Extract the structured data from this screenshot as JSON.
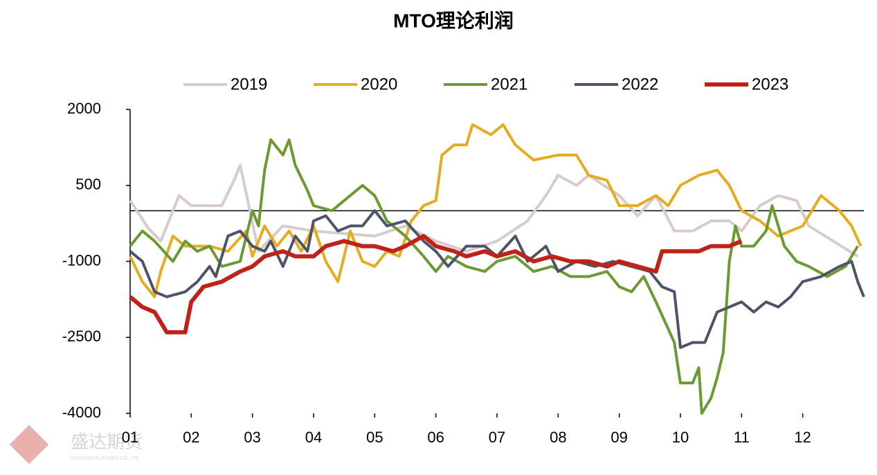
{
  "chart_data": {
    "type": "line",
    "title": "MTO理论利润",
    "xlim": [
      1,
      13
    ],
    "xticks": [
      {
        "value": 1,
        "label": "01"
      },
      {
        "value": 2,
        "label": "02"
      },
      {
        "value": 3,
        "label": "03"
      },
      {
        "value": 4,
        "label": "04"
      },
      {
        "value": 5,
        "label": "05"
      },
      {
        "value": 6,
        "label": "06"
      },
      {
        "value": 7,
        "label": "07"
      },
      {
        "value": 8,
        "label": "08"
      },
      {
        "value": 9,
        "label": "09"
      },
      {
        "value": 10,
        "label": "10"
      },
      {
        "value": 11,
        "label": "11"
      },
      {
        "value": 12,
        "label": "12"
      }
    ],
    "ylim": [
      -4000,
      2000
    ],
    "yticks": [
      2000,
      500,
      -1000,
      -2500,
      -4000
    ],
    "legend": "top",
    "series": [
      {
        "name": "2019",
        "color": "#d9cbcb",
        "width": 4,
        "x": [
          1,
          1.3,
          1.5,
          1.8,
          2.0,
          2.5,
          2.7,
          2.8,
          3.1,
          3.5,
          4.0,
          5.0,
          5.5,
          6.0,
          6.5,
          7.0,
          7.5,
          7.8,
          8.0,
          8.3,
          8.5,
          9.0,
          9.3,
          9.6,
          9.9,
          10.2,
          10.5,
          10.8,
          11.0,
          11.3,
          11.6,
          11.9,
          12.1,
          12.5,
          12.9
        ],
        "values": [
          200,
          -350,
          -600,
          300,
          100,
          100,
          600,
          900,
          -800,
          -300,
          -400,
          -500,
          -300,
          -600,
          -800,
          -600,
          -200,
          300,
          700,
          500,
          700,
          300,
          -100,
          300,
          -400,
          -400,
          -200,
          -200,
          -400,
          100,
          300,
          200,
          -300,
          -600,
          -900
        ]
      },
      {
        "name": "2020",
        "color": "#e5ac20",
        "width": 4,
        "x": [
          1,
          1.2,
          1.4,
          1.5,
          1.7,
          1.9,
          2.3,
          2.6,
          2.9,
          3.0,
          3.2,
          3.4,
          3.6,
          3.8,
          4.0,
          4.2,
          4.4,
          4.6,
          4.8,
          5.0,
          5.2,
          5.4,
          5.6,
          5.8,
          6.0,
          6.1,
          6.3,
          6.5,
          6.6,
          6.9,
          7.1,
          7.3,
          7.6,
          8.0,
          8.3,
          8.5,
          8.8,
          9.0,
          9.3,
          9.6,
          9.8,
          10.0,
          10.3,
          10.6,
          10.8,
          11.0,
          11.3,
          11.6,
          12.0,
          12.3,
          12.6,
          12.8,
          12.95
        ],
        "values": [
          -900,
          -1400,
          -1700,
          -1200,
          -500,
          -700,
          -700,
          -800,
          -400,
          -900,
          -300,
          -700,
          -400,
          -800,
          -300,
          -1000,
          -1400,
          -400,
          -1000,
          -1100,
          -800,
          -900,
          -200,
          100,
          200,
          1100,
          1300,
          1300,
          1700,
          1500,
          1700,
          1300,
          1000,
          1100,
          1100,
          700,
          600,
          100,
          100,
          300,
          100,
          500,
          700,
          800,
          500,
          0,
          -200,
          -500,
          -300,
          300,
          0,
          -300,
          -700
        ]
      },
      {
        "name": "2021",
        "color": "#6a9a30",
        "width": 4,
        "x": [
          1,
          1.2,
          1.4,
          1.7,
          1.9,
          2.1,
          2.3,
          2.5,
          2.8,
          3.0,
          3.1,
          3.2,
          3.3,
          3.5,
          3.6,
          3.7,
          3.9,
          4.0,
          4.3,
          4.5,
          4.8,
          5.0,
          5.2,
          5.5,
          5.8,
          6.0,
          6.2,
          6.5,
          6.8,
          7.0,
          7.3,
          7.6,
          7.9,
          8.2,
          8.5,
          8.8,
          9.0,
          9.2,
          9.4,
          9.6,
          9.9,
          10.0,
          10.2,
          10.3,
          10.35,
          10.5,
          10.6,
          10.7,
          10.8,
          10.9,
          11.0,
          11.2,
          11.4,
          11.5,
          11.7,
          11.9,
          12.1,
          12.4,
          12.7,
          12.9
        ],
        "values": [
          -700,
          -400,
          -600,
          -1000,
          -600,
          -800,
          -700,
          -1100,
          -1000,
          0,
          -300,
          800,
          1400,
          1100,
          1400,
          900,
          400,
          100,
          0,
          200,
          500,
          300,
          -200,
          -500,
          -900,
          -1200,
          -900,
          -1100,
          -1200,
          -1000,
          -900,
          -1200,
          -1100,
          -1300,
          -1300,
          -1200,
          -1500,
          -1600,
          -1300,
          -1800,
          -2600,
          -3400,
          -3400,
          -3100,
          -4000,
          -3700,
          -3300,
          -2800,
          -1000,
          -300,
          -700,
          -700,
          -400,
          100,
          -700,
          -1000,
          -1100,
          -1300,
          -1100,
          -700
        ]
      },
      {
        "name": "2022",
        "color": "#4d5468",
        "width": 4,
        "x": [
          1,
          1.2,
          1.4,
          1.6,
          1.9,
          2.1,
          2.3,
          2.4,
          2.6,
          2.8,
          3.0,
          3.2,
          3.3,
          3.5,
          3.7,
          3.9,
          4.0,
          4.2,
          4.4,
          4.6,
          4.8,
          5.0,
          5.2,
          5.5,
          5.8,
          6.0,
          6.2,
          6.5,
          6.8,
          7.0,
          7.3,
          7.5,
          7.8,
          8.0,
          8.3,
          8.6,
          8.9,
          9.2,
          9.5,
          9.7,
          9.9,
          10.0,
          10.2,
          10.4,
          10.6,
          10.8,
          11.0,
          11.2,
          11.4,
          11.6,
          11.8,
          12.0,
          12.3,
          12.6,
          12.8,
          12.9,
          13.0
        ],
        "values": [
          -800,
          -1000,
          -1600,
          -1700,
          -1600,
          -1400,
          -1100,
          -1300,
          -500,
          -400,
          -700,
          -800,
          -600,
          -1100,
          -500,
          -800,
          -200,
          -100,
          -400,
          -300,
          -300,
          0,
          -300,
          -200,
          -600,
          -800,
          -1100,
          -700,
          -700,
          -900,
          -500,
          -1000,
          -700,
          -1200,
          -1000,
          -1100,
          -1000,
          -1100,
          -1200,
          -1500,
          -1600,
          -2700,
          -2600,
          -2600,
          -2000,
          -1900,
          -1800,
          -2000,
          -1800,
          -1900,
          -1700,
          -1400,
          -1300,
          -1100,
          -1000,
          -1400,
          -1700
        ]
      },
      {
        "name": "2023",
        "color": "#c0221a",
        "width": 6,
        "x": [
          1,
          1.2,
          1.4,
          1.6,
          1.9,
          2.0,
          2.2,
          2.5,
          2.8,
          3.0,
          3.2,
          3.5,
          3.7,
          4.0,
          4.2,
          4.5,
          4.8,
          5.0,
          5.3,
          5.5,
          5.8,
          6.0,
          6.3,
          6.5,
          6.8,
          7.0,
          7.3,
          7.6,
          7.9,
          8.2,
          8.5,
          8.8,
          9.0,
          9.3,
          9.6,
          9.7,
          10.0,
          10.3,
          10.5,
          10.8,
          11.0
        ],
        "values": [
          -1700,
          -1900,
          -2000,
          -2400,
          -2400,
          -1800,
          -1500,
          -1400,
          -1200,
          -1100,
          -900,
          -800,
          -900,
          -900,
          -700,
          -600,
          -700,
          -700,
          -800,
          -700,
          -500,
          -700,
          -800,
          -900,
          -800,
          -900,
          -800,
          -1000,
          -900,
          -1000,
          -1000,
          -1100,
          -1000,
          -1100,
          -1200,
          -800,
          -800,
          -800,
          -700,
          -700,
          -600
        ]
      }
    ]
  },
  "watermark": {
    "name": "盛达期货",
    "subtitle": "SHENGDA FUTURES CO.,LTD."
  }
}
